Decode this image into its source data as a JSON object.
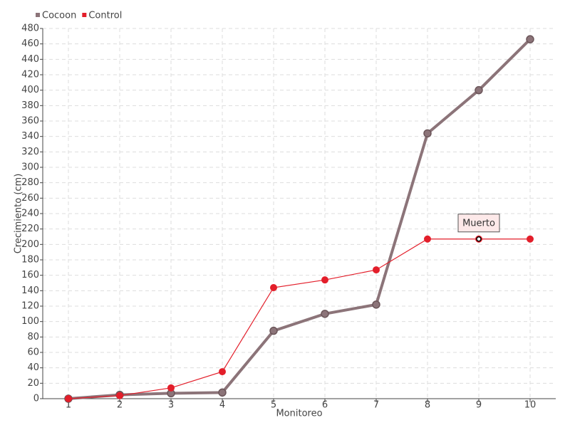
{
  "chart_data": {
    "type": "line",
    "x_label": "Monitoreo",
    "y_label": "Crecimiento (cm)",
    "categories": [
      "1",
      "2",
      "3",
      "4",
      "5",
      "6",
      "7",
      "8",
      "9",
      "10"
    ],
    "series": [
      {
        "name": "Cocoon",
        "color": "#8c7479",
        "values": [
          0,
          5,
          7,
          8,
          88,
          110,
          122,
          344,
          400,
          466
        ]
      },
      {
        "name": "Control",
        "color": "#e31e2a",
        "values": [
          0,
          4,
          14,
          35,
          144,
          154,
          167,
          207,
          207,
          207
        ]
      }
    ],
    "annotation": "Muerto",
    "ylim": [
      0,
      480
    ],
    "yticks": [
      0,
      20,
      40,
      60,
      80,
      100,
      120,
      140,
      160,
      180,
      200,
      220,
      240,
      260,
      280,
      300,
      320,
      340,
      360,
      380,
      400,
      420,
      440,
      460,
      480
    ],
    "grid": true,
    "legend": "top-left"
  }
}
